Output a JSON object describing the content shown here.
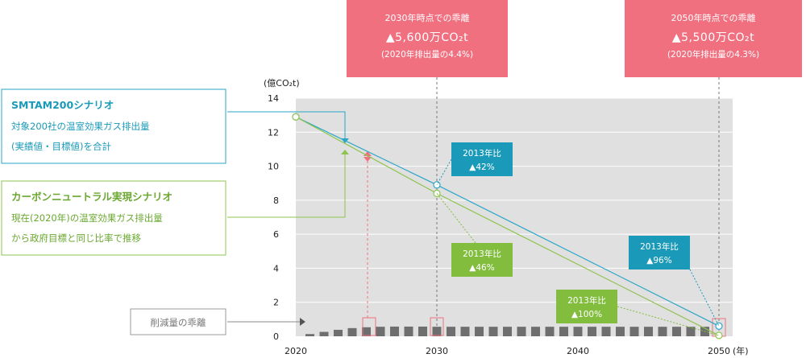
{
  "chart_data": {
    "type": "line",
    "ylabel": "(億CO₂t)",
    "xlabel": "(年)",
    "xlim": [
      2020,
      2050
    ],
    "ylim": [
      0,
      14
    ],
    "yticks": [
      0,
      2,
      4,
      6,
      8,
      10,
      12,
      14
    ],
    "xticks": [
      "2020",
      "2030",
      "2040",
      "2050"
    ],
    "series": [
      {
        "name": "SMTAM200シナリオ",
        "x": [
          2020,
          2030,
          2050
        ],
        "values": [
          12.9,
          8.9,
          0.6
        ],
        "color": "#2aa6c7"
      },
      {
        "name": "カーボンニュートラル実現シナリオ",
        "x": [
          2020,
          2030,
          2050
        ],
        "values": [
          12.9,
          8.4,
          0.05
        ],
        "color": "#8dc44e"
      },
      {
        "name": "削減量の乖離",
        "type": "bar",
        "x": [
          2021,
          2022,
          2023,
          2024,
          2025,
          2026,
          2027,
          2028,
          2029,
          2030,
          2031,
          2032,
          2033,
          2034,
          2035,
          2036,
          2037,
          2038,
          2039,
          2040,
          2041,
          2042,
          2043,
          2044,
          2045,
          2046,
          2047,
          2048,
          2049
        ],
        "values": [
          0.13,
          0.26,
          0.38,
          0.48,
          0.53,
          0.56,
          0.57,
          0.57,
          0.57,
          0.56,
          0.56,
          0.56,
          0.56,
          0.56,
          0.56,
          0.56,
          0.56,
          0.56,
          0.56,
          0.56,
          0.56,
          0.56,
          0.56,
          0.56,
          0.56,
          0.56,
          0.56,
          0.56,
          0.56
        ],
        "color": "#6e6e6e"
      }
    ]
  },
  "legend": {
    "smtam": {
      "title": "SMTAM200シナリオ",
      "line1": "対象200社の温室効果ガス排出量",
      "line2": "(実績値・目標値)を合計"
    },
    "cn": {
      "title": "カーボンニュートラル実現シナリオ",
      "line1": "現在(2020年)の温室効果ガス排出量",
      "line2": "から政府目標と同じ比率で推移"
    },
    "gap": {
      "title": "削減量の乖離"
    }
  },
  "callouts": [
    {
      "title": "2030年時点での乖離",
      "value": "▲5,600万CO₂t",
      "note": "(2020年排出量の4.4%)"
    },
    {
      "title": "2050年時点での乖離",
      "value": "▲5,500万CO₂t",
      "note": "(2020年排出量の4.3%)"
    }
  ],
  "tags": [
    {
      "line1": "2013年比",
      "line2": "▲42%",
      "color": "#1a9ab8"
    },
    {
      "line1": "2013年比",
      "line2": "▲46%",
      "color": "#82bd3e"
    },
    {
      "line1": "2013年比",
      "line2": "▲96%",
      "color": "#1a9ab8"
    },
    {
      "line1": "2013年比",
      "line2": "▲100%",
      "color": "#82bd3e"
    }
  ]
}
